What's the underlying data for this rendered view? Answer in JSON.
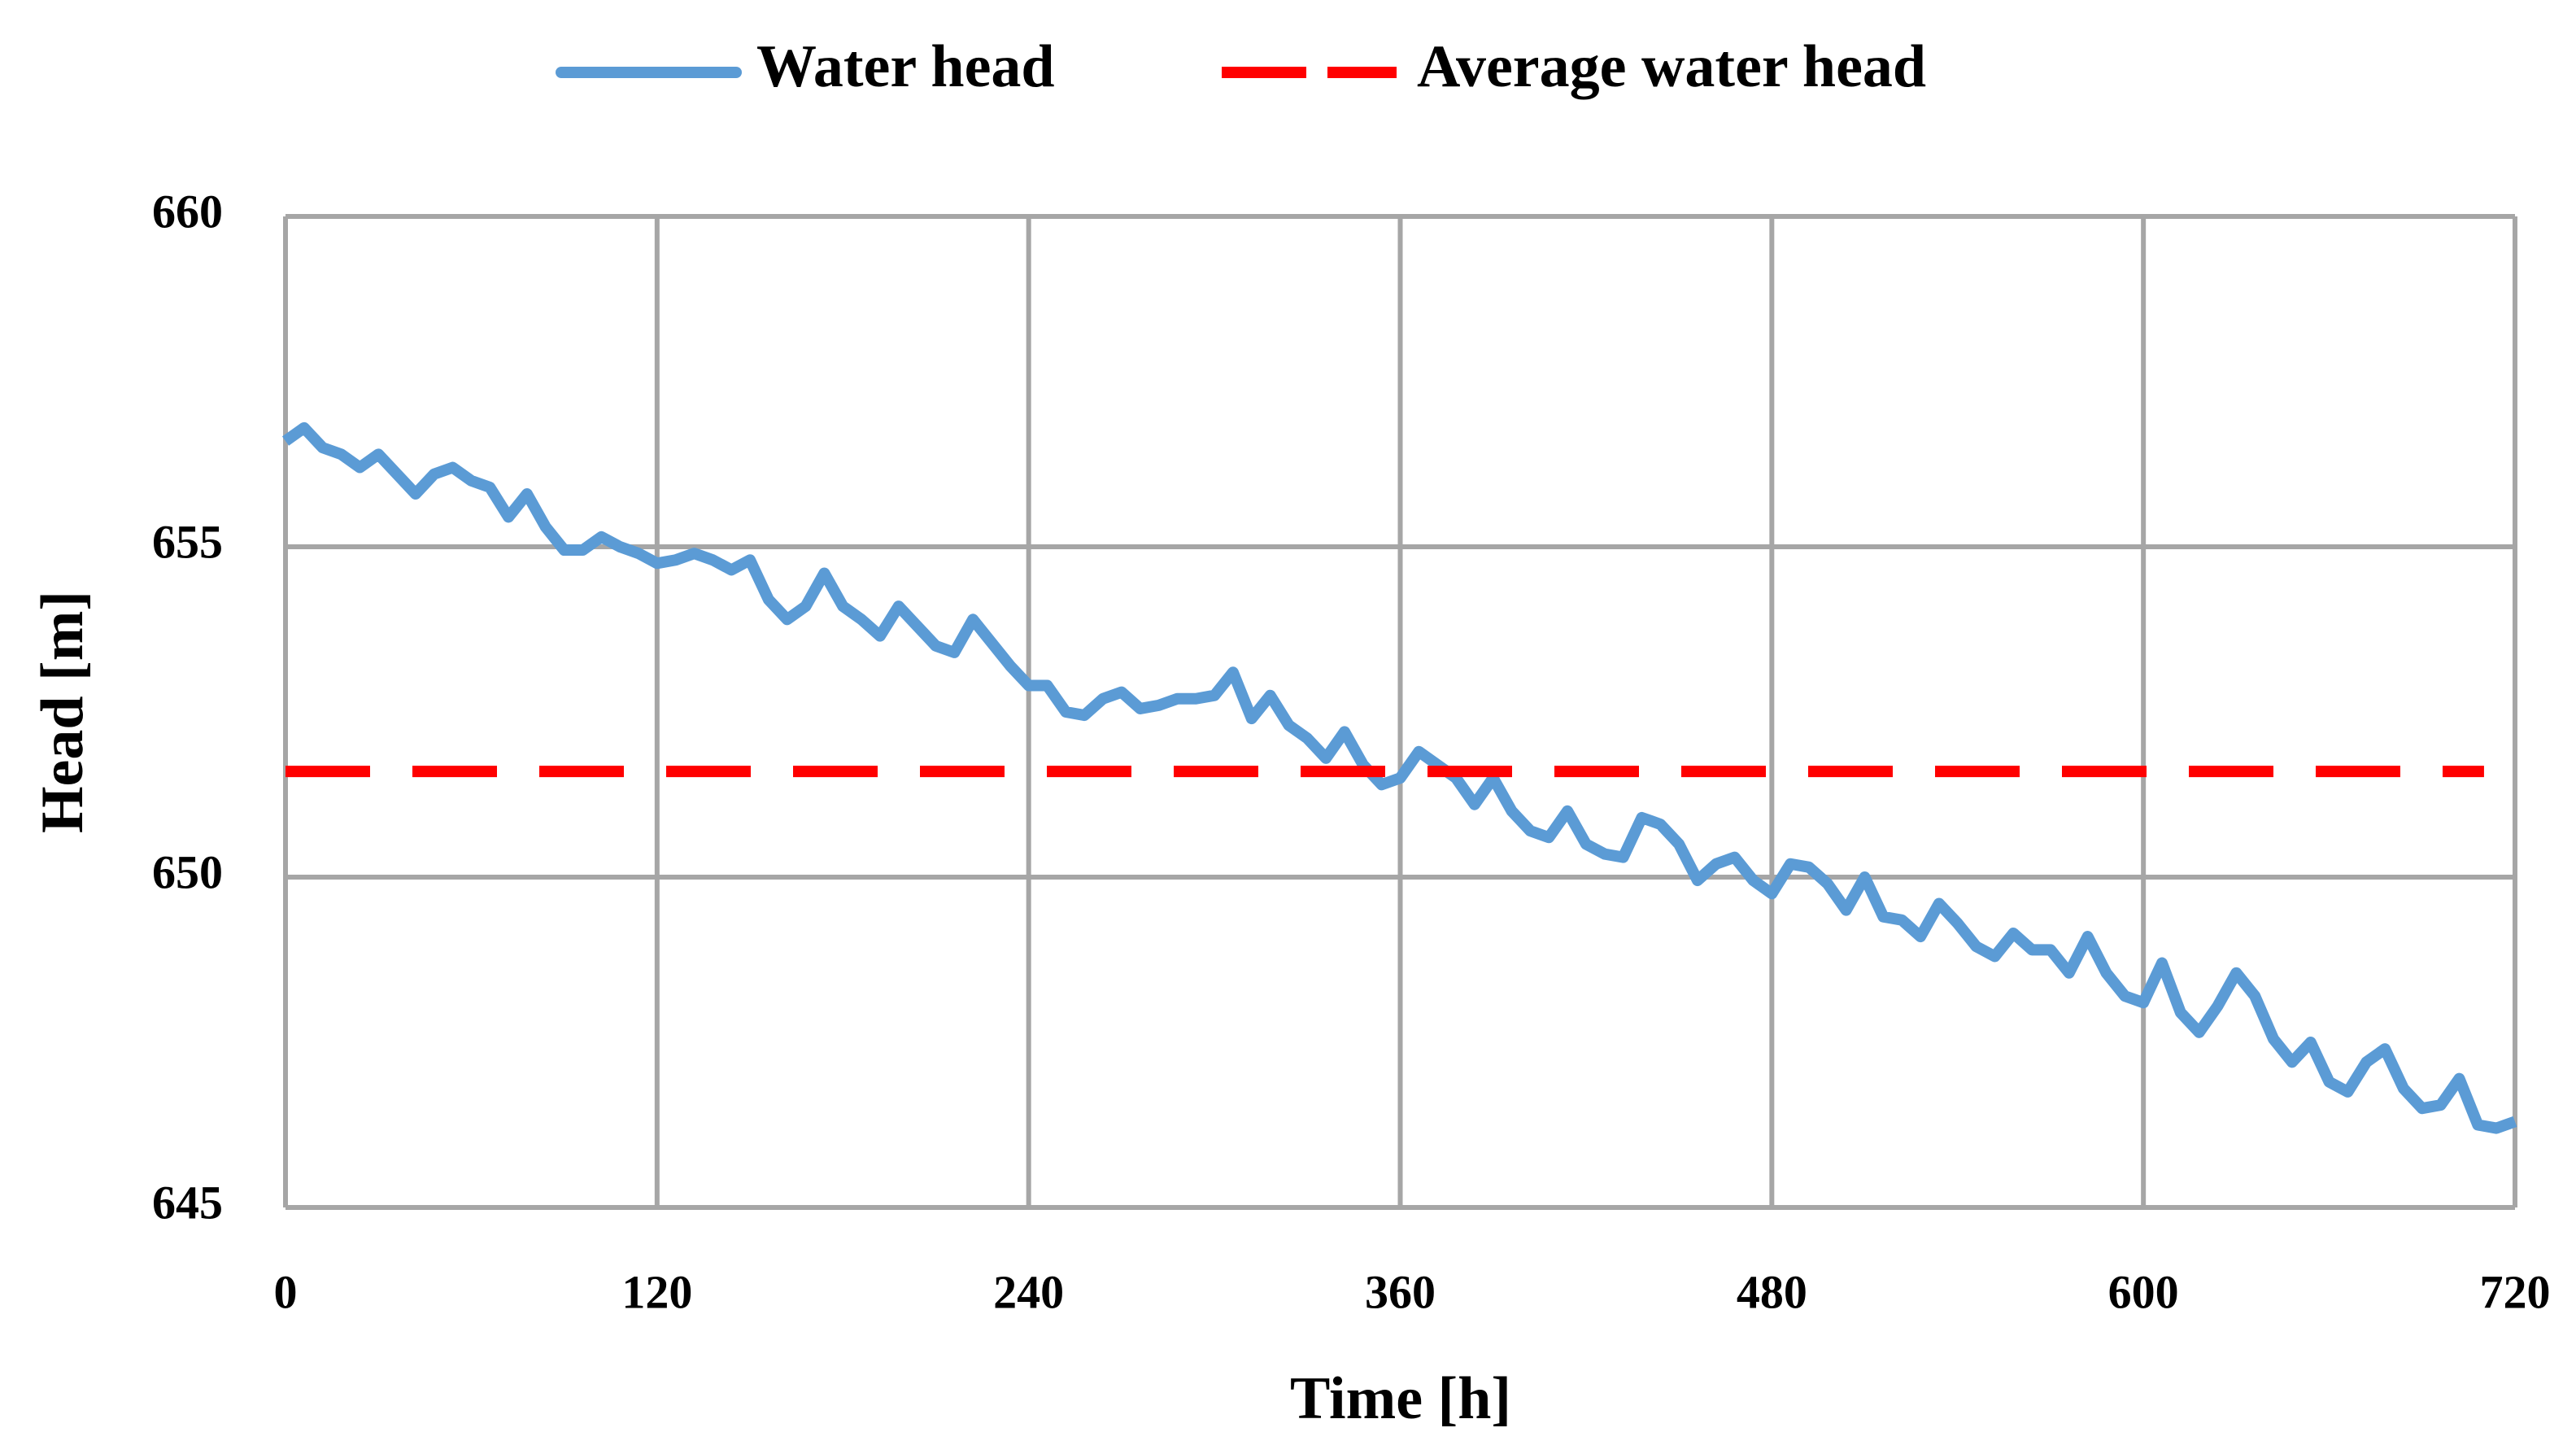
{
  "chart_data": {
    "type": "line",
    "x_label": "Time [h]",
    "y_label": "Head [m]",
    "xlim": [
      0,
      720
    ],
    "xticks": [
      0,
      120,
      240,
      360,
      480,
      600,
      720
    ],
    "ylim": [
      645,
      660
    ],
    "yticks": [
      645,
      650,
      655,
      660
    ],
    "grid": true,
    "legend": "top",
    "series": [
      {
        "name": "Water head",
        "color": "#5b9bd5",
        "style": "solid",
        "x": [
          0,
          6,
          12,
          18,
          24,
          30,
          36,
          42,
          48,
          54,
          60,
          66,
          72,
          78,
          84,
          90,
          96,
          102,
          108,
          114,
          120,
          126,
          132,
          138,
          144,
          150,
          156,
          162,
          168,
          174,
          180,
          186,
          192,
          198,
          204,
          210,
          216,
          222,
          228,
          234,
          240,
          246,
          252,
          258,
          264,
          270,
          276,
          282,
          288,
          294,
          300,
          306,
          312,
          318,
          324,
          330,
          336,
          342,
          348,
          354,
          360,
          366,
          372,
          378,
          384,
          390,
          396,
          402,
          408,
          414,
          420,
          426,
          432,
          438,
          444,
          450,
          456,
          462,
          468,
          474,
          480,
          486,
          492,
          498,
          504,
          510,
          516,
          522,
          528,
          534,
          540,
          546,
          552,
          558,
          564,
          570,
          576,
          582,
          588,
          594,
          600,
          606,
          612,
          618,
          624,
          630,
          636,
          642,
          648,
          654,
          660,
          666,
          672,
          678,
          684,
          690,
          696,
          702,
          708,
          714,
          720
        ],
        "values": [
          656.6,
          656.8,
          656.5,
          656.4,
          656.2,
          656.4,
          656.1,
          655.8,
          656.1,
          656.2,
          656.0,
          655.9,
          655.45,
          655.8,
          655.3,
          654.95,
          654.95,
          655.15,
          655.0,
          654.9,
          654.75,
          654.8,
          654.9,
          654.8,
          654.65,
          654.8,
          654.2,
          653.9,
          654.1,
          654.6,
          654.1,
          653.9,
          653.65,
          654.1,
          653.8,
          653.5,
          653.4,
          653.9,
          653.55,
          653.2,
          652.9,
          652.9,
          652.5,
          652.45,
          652.7,
          652.8,
          652.55,
          652.6,
          652.7,
          652.7,
          652.75,
          653.1,
          652.4,
          652.75,
          652.3,
          652.1,
          651.8,
          652.2,
          651.7,
          651.4,
          651.5,
          651.9,
          651.7,
          651.5,
          651.1,
          651.5,
          651.0,
          650.7,
          650.6,
          651.0,
          650.5,
          650.35,
          650.3,
          650.9,
          650.8,
          650.5,
          649.95,
          650.2,
          650.3,
          649.95,
          649.75,
          650.2,
          650.15,
          649.9,
          649.5,
          650.0,
          649.4,
          649.35,
          649.1,
          649.6,
          649.3,
          648.95,
          648.8,
          649.15,
          648.9,
          648.9,
          648.55,
          649.1,
          648.55,
          648.2,
          648.1,
          648.7,
          647.95,
          647.65,
          648.05,
          648.55,
          648.2,
          647.55,
          647.2,
          647.5,
          646.9,
          646.75,
          647.2,
          647.4,
          646.8,
          646.5,
          646.55,
          646.95,
          646.25,
          646.2,
          646.3
        ]
      },
      {
        "name": "Average water head",
        "color": "#ff0000",
        "style": "dashed",
        "x": [
          0,
          710
        ],
        "values": [
          651.6,
          651.6
        ]
      }
    ]
  }
}
